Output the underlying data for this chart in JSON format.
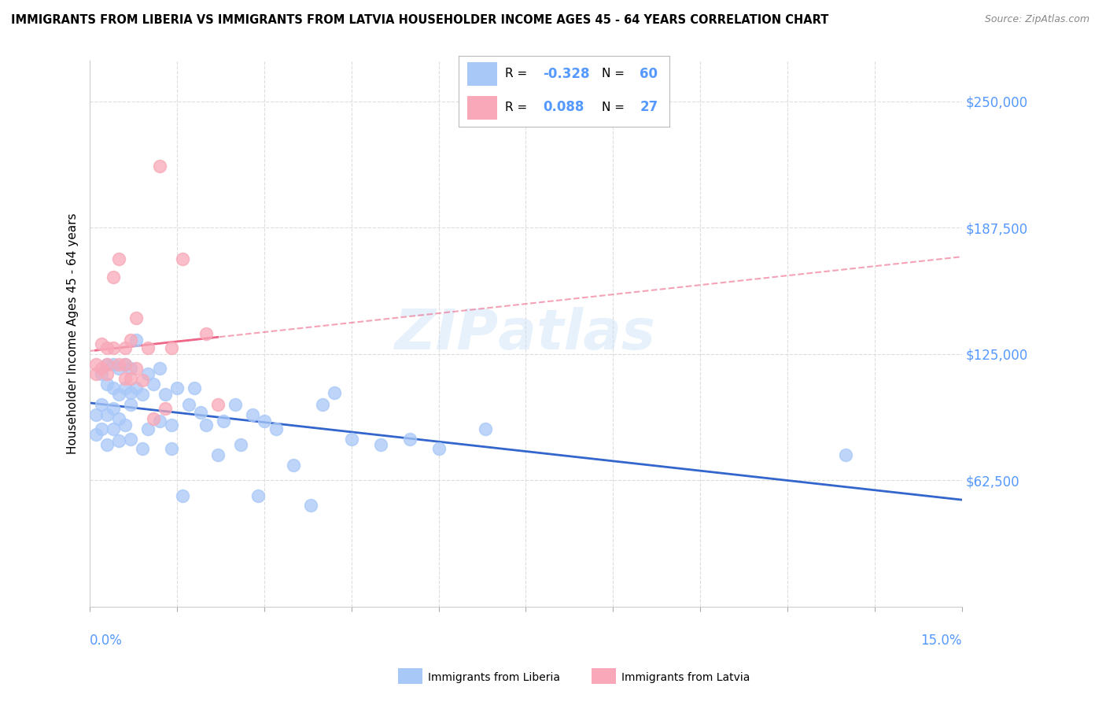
{
  "title": "IMMIGRANTS FROM LIBERIA VS IMMIGRANTS FROM LATVIA HOUSEHOLDER INCOME AGES 45 - 64 YEARS CORRELATION CHART",
  "source": "Source: ZipAtlas.com",
  "ylabel": "Householder Income Ages 45 - 64 years",
  "yticks": [
    62500,
    125000,
    187500,
    250000
  ],
  "ytick_labels": [
    "$62,500",
    "$125,000",
    "$187,500",
    "$250,000"
  ],
  "xlim": [
    0.0,
    0.15
  ],
  "ylim": [
    0,
    270000
  ],
  "liberia_color": "#a8c8f8",
  "latvia_color": "#f8a8b8",
  "liberia_line_color": "#3366cc",
  "latvia_line_solid_color": "#ee6688",
  "latvia_line_dash_color": "#ee6688",
  "tick_color": "#5599ff",
  "liberia_x": [
    0.001,
    0.001,
    0.002,
    0.002,
    0.002,
    0.003,
    0.003,
    0.003,
    0.003,
    0.004,
    0.004,
    0.004,
    0.004,
    0.005,
    0.005,
    0.005,
    0.005,
    0.006,
    0.006,
    0.006,
    0.007,
    0.007,
    0.007,
    0.007,
    0.008,
    0.008,
    0.009,
    0.009,
    0.01,
    0.01,
    0.011,
    0.012,
    0.012,
    0.013,
    0.014,
    0.014,
    0.015,
    0.016,
    0.017,
    0.018,
    0.019,
    0.02,
    0.022,
    0.023,
    0.025,
    0.026,
    0.028,
    0.029,
    0.03,
    0.032,
    0.035,
    0.038,
    0.04,
    0.042,
    0.045,
    0.05,
    0.055,
    0.06,
    0.068,
    0.13
  ],
  "liberia_y": [
    95000,
    85000,
    115000,
    100000,
    88000,
    120000,
    110000,
    95000,
    80000,
    120000,
    108000,
    98000,
    88000,
    118000,
    105000,
    93000,
    82000,
    120000,
    108000,
    90000,
    118000,
    106000,
    100000,
    83000,
    132000,
    108000,
    105000,
    78000,
    115000,
    88000,
    110000,
    118000,
    92000,
    105000,
    90000,
    78000,
    108000,
    55000,
    100000,
    108000,
    96000,
    90000,
    75000,
    92000,
    100000,
    80000,
    95000,
    55000,
    92000,
    88000,
    70000,
    50000,
    100000,
    106000,
    83000,
    80000,
    83000,
    78000,
    88000,
    75000
  ],
  "latvia_x": [
    0.001,
    0.001,
    0.002,
    0.002,
    0.003,
    0.003,
    0.003,
    0.004,
    0.004,
    0.005,
    0.005,
    0.006,
    0.006,
    0.006,
    0.007,
    0.007,
    0.008,
    0.008,
    0.009,
    0.01,
    0.011,
    0.012,
    0.013,
    0.014,
    0.016,
    0.02,
    0.022
  ],
  "latvia_y": [
    120000,
    115000,
    130000,
    118000,
    128000,
    120000,
    115000,
    163000,
    128000,
    172000,
    120000,
    128000,
    120000,
    113000,
    132000,
    113000,
    143000,
    118000,
    112000,
    128000,
    93000,
    218000,
    98000,
    128000,
    172000,
    135000,
    100000
  ]
}
